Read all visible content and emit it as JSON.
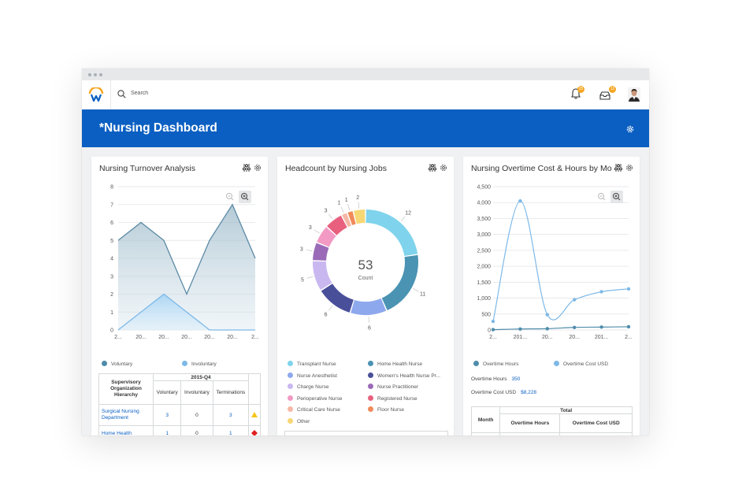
{
  "app": {
    "search": {
      "placeholder": "Search"
    },
    "notifications": {
      "count": "25"
    },
    "inbox": {
      "count": "12"
    }
  },
  "banner": {
    "title": "*Nursing Dashboard"
  },
  "cards": {
    "turnover": {
      "title": "Nursing Turnover Analysis",
      "legend": [
        {
          "label": "Voluntary",
          "color": "#4e8cab"
        },
        {
          "label": "Involuntary",
          "color": "#7db9e8"
        }
      ],
      "table": {
        "header_group": "2015-Q4",
        "row_header": "Supervisory Organization Hierarchy",
        "columns": [
          "Voluntary",
          "Involuntary",
          "Terminations"
        ],
        "rows": [
          {
            "name": "Surgical Nursing Department",
            "voluntary": "3",
            "involuntary": "0",
            "terminations": "3",
            "flag": "warning"
          },
          {
            "name": "Home Health",
            "voluntary": "1",
            "involuntary": "0",
            "terminations": "1",
            "flag": "alert"
          }
        ]
      }
    },
    "headcount": {
      "title": "Headcount by Nursing Jobs",
      "center_value": "53",
      "center_label": "Count",
      "legend": [
        {
          "label": "Transplant Nurse",
          "color": "#7fd3ec"
        },
        {
          "label": "Home Health Nurse",
          "color": "#4a93b3"
        },
        {
          "label": "Nurse Anesthetist",
          "color": "#8ea8ee"
        },
        {
          "label": "Women's Health Nurse Pr...",
          "color": "#4a4f9a"
        },
        {
          "label": "Charge Nurse",
          "color": "#c9b8f0"
        },
        {
          "label": "Nurse Practitioner",
          "color": "#9a6ab8"
        },
        {
          "label": "Perioperative Nurse",
          "color": "#f29ac4"
        },
        {
          "label": "Registered Nurse",
          "color": "#e8607e"
        },
        {
          "label": "Critical Care Nurse",
          "color": "#f6b8a6"
        },
        {
          "label": "Floor Nurse",
          "color": "#f08a5a"
        },
        {
          "label": "Other",
          "color": "#f7d774"
        }
      ]
    },
    "overtime": {
      "title": "Nursing Overtime Cost & Hours by Mo...",
      "legend": [
        {
          "label": "Overtime Hours",
          "color": "#4e8cab"
        },
        {
          "label": "Overtime Cost USD",
          "color": "#7db9e8"
        }
      ],
      "stats": [
        {
          "label": "Overtime Hours",
          "value": "350"
        },
        {
          "label": "Overtime Cost USD",
          "value": "$8,228"
        }
      ],
      "table": {
        "col_month": "Month",
        "group": "Total",
        "columns": [
          "Overtime Hours",
          "Overtime Cost USD"
        ]
      }
    }
  },
  "chart_data": [
    {
      "type": "area",
      "title": "Nursing Turnover Analysis",
      "categories": [
        "2...",
        "20...",
        "20...",
        "20...",
        "20...",
        "20...",
        "2..."
      ],
      "ylim": [
        0,
        8
      ],
      "yticks": [
        0,
        1,
        2,
        3,
        4,
        5,
        6,
        7,
        8
      ],
      "series": [
        {
          "name": "Voluntary",
          "values": [
            5,
            6,
            5,
            2,
            5,
            7,
            4
          ]
        },
        {
          "name": "Involuntary",
          "values": [
            0,
            1,
            2,
            1,
            0,
            0,
            0
          ]
        }
      ]
    },
    {
      "type": "pie",
      "title": "Headcount by Nursing Jobs",
      "total": 53,
      "labels": [
        "Transplant Nurse",
        "Home Health Nurse",
        "Nurse Anesthetist",
        "Women's Health Nurse Pr...",
        "Charge Nurse",
        "Nurse Practitioner",
        "Perioperative Nurse",
        "Registered Nurse",
        "Critical Care Nurse",
        "Floor Nurse",
        "Other"
      ],
      "values": [
        12,
        11,
        6,
        6,
        5,
        3,
        3,
        3,
        1,
        1,
        2
      ]
    },
    {
      "type": "line",
      "title": "Nursing Overtime Cost & Hours by Mo...",
      "categories": [
        "2...",
        "201...",
        "20...",
        "20...",
        "201...",
        "2..."
      ],
      "ylim": [
        0,
        4500
      ],
      "yticks": [
        "0",
        "500",
        "1,000",
        "1,500",
        "2,000",
        "2,500",
        "3,000",
        "3,500",
        "4,000",
        "4,500"
      ],
      "series": [
        {
          "name": "Overtime Hours",
          "values": [
            10,
            30,
            40,
            80,
            90,
            100
          ]
        },
        {
          "name": "Overtime Cost USD",
          "values": [
            270,
            4050,
            480,
            950,
            1200,
            1290
          ]
        }
      ]
    }
  ]
}
